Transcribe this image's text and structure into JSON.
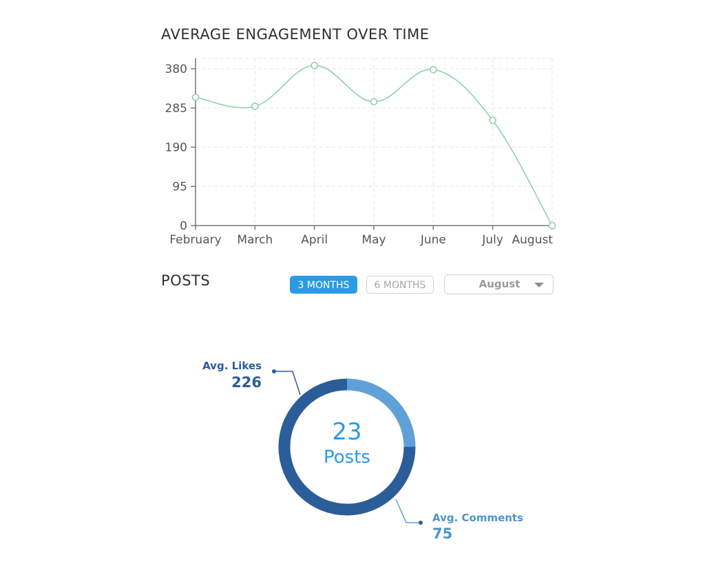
{
  "engagement": {
    "title": "AVERAGE ENGAGEMENT OVER TIME"
  },
  "posts": {
    "title": "POSTS",
    "buttons": {
      "three_months": "3 MONTHS",
      "six_months": "6 MONTHS"
    },
    "month_select": {
      "value": "August"
    },
    "center": {
      "count": "23",
      "label": "Posts"
    },
    "likes": {
      "label": "Avg. Likes",
      "value": "226"
    },
    "comments": {
      "label": "Avg. Comments",
      "value": "75"
    }
  },
  "colors": {
    "line": "#8fd1a8",
    "accent": "#2b9be4",
    "likes": "#2b5d99",
    "comments": "#5fa0d6"
  },
  "chart_data": [
    {
      "type": "line",
      "title": "AVERAGE ENGAGEMENT OVER TIME",
      "categories": [
        "February",
        "March",
        "April",
        "May",
        "June",
        "July",
        "August"
      ],
      "series": [
        {
          "values": [
            311,
            289,
            388,
            300,
            378,
            255,
            0
          ]
        }
      ],
      "yticks": [
        0,
        95,
        190,
        285,
        380
      ],
      "ylim": [
        0,
        380
      ],
      "grid": true
    },
    {
      "type": "pie",
      "donut": true,
      "labels": [
        "Avg. Likes",
        "Avg. Comments"
      ],
      "values": [
        226,
        75
      ]
    }
  ]
}
